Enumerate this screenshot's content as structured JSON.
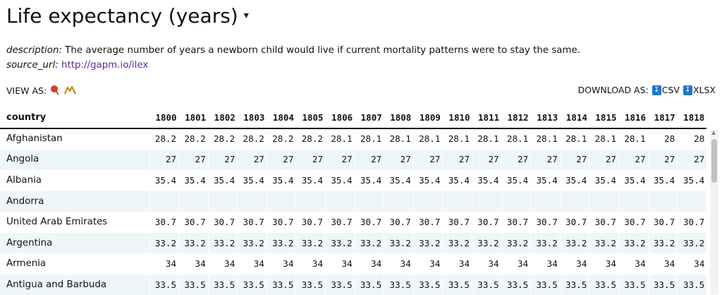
{
  "header": {
    "title": "Life expectancy (years)",
    "caret": "▾"
  },
  "meta": {
    "description_label": "description:",
    "description_text": "The average number of years a newborn child would live if current mortality patterns were to stay the same.",
    "source_label": "source_url:",
    "source_link": "http://gapm.io/ilex"
  },
  "view_as": {
    "label": "VIEW AS:",
    "icons": [
      "map-pin-icon",
      "mountain-chart-icon"
    ]
  },
  "download": {
    "label": "DOWNLOAD AS:",
    "csv_label": "CSV",
    "xlsx_label": "XLSX",
    "icon": "↧"
  },
  "table": {
    "country_header": "country",
    "years": [
      "1800",
      "1801",
      "1802",
      "1803",
      "1804",
      "1805",
      "1806",
      "1807",
      "1808",
      "1809",
      "1810",
      "1811",
      "1812",
      "1813",
      "1814",
      "1815",
      "1816",
      "1817",
      "1818"
    ],
    "rows": [
      {
        "country": "Afghanistan",
        "values": [
          "28.2",
          "28.2",
          "28.2",
          "28.2",
          "28.2",
          "28.2",
          "28.1",
          "28.1",
          "28.1",
          "28.1",
          "28.1",
          "28.1",
          "28.1",
          "28.1",
          "28.1",
          "28.1",
          "28.1",
          "28",
          "28"
        ]
      },
      {
        "country": "Angola",
        "values": [
          "27",
          "27",
          "27",
          "27",
          "27",
          "27",
          "27",
          "27",
          "27",
          "27",
          "27",
          "27",
          "27",
          "27",
          "27",
          "27",
          "27",
          "27",
          "27"
        ]
      },
      {
        "country": "Albania",
        "values": [
          "35.4",
          "35.4",
          "35.4",
          "35.4",
          "35.4",
          "35.4",
          "35.4",
          "35.4",
          "35.4",
          "35.4",
          "35.4",
          "35.4",
          "35.4",
          "35.4",
          "35.4",
          "35.4",
          "35.4",
          "35.4",
          "35.4"
        ]
      },
      {
        "country": "Andorra",
        "values": [
          "",
          "",
          "",
          "",
          "",
          "",
          "",
          "",
          "",
          "",
          "",
          "",
          "",
          "",
          "",
          "",
          "",
          "",
          ""
        ]
      },
      {
        "country": "United Arab Emirates",
        "values": [
          "30.7",
          "30.7",
          "30.7",
          "30.7",
          "30.7",
          "30.7",
          "30.7",
          "30.7",
          "30.7",
          "30.7",
          "30.7",
          "30.7",
          "30.7",
          "30.7",
          "30.7",
          "30.7",
          "30.7",
          "30.7",
          "30.7"
        ]
      },
      {
        "country": "Argentina",
        "values": [
          "33.2",
          "33.2",
          "33.2",
          "33.2",
          "33.2",
          "33.2",
          "33.2",
          "33.2",
          "33.2",
          "33.2",
          "33.2",
          "33.2",
          "33.2",
          "33.2",
          "33.2",
          "33.2",
          "33.2",
          "33.2",
          "33.2"
        ]
      },
      {
        "country": "Armenia",
        "values": [
          "34",
          "34",
          "34",
          "34",
          "34",
          "34",
          "34",
          "34",
          "34",
          "34",
          "34",
          "34",
          "34",
          "34",
          "34",
          "34",
          "34",
          "34",
          "34"
        ]
      },
      {
        "country": "Antigua and Barbuda",
        "values": [
          "33.5",
          "33.5",
          "33.5",
          "33.5",
          "33.5",
          "33.5",
          "33.5",
          "33.5",
          "33.5",
          "33.5",
          "33.5",
          "33.5",
          "33.5",
          "33.5",
          "33.5",
          "33.5",
          "33.5",
          "33.5",
          "33.5"
        ]
      }
    ]
  },
  "colors": {
    "row_alt": "#eef6fa",
    "link": "#5b2a9a",
    "download_icon": "#2176c7"
  }
}
